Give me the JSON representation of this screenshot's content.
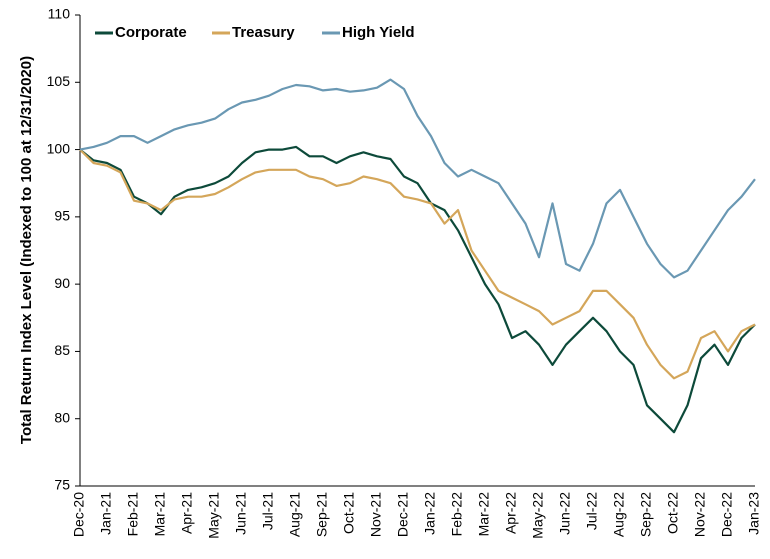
{
  "chart_data": {
    "type": "line",
    "y_label": "Total Return Index Level (Indexed to 100 at 12/31/2020)",
    "categories": [
      "Dec-20",
      null,
      "Jan-21",
      null,
      "Feb-21",
      null,
      "Mar-21",
      null,
      "Apr-21",
      null,
      "May-21",
      null,
      "Jun-21",
      null,
      "Jul-21",
      null,
      "Aug-21",
      null,
      "Sep-21",
      null,
      "Oct-21",
      null,
      "Nov-21",
      null,
      "Dec-21",
      null,
      "Jan-22",
      null,
      "Feb-22",
      null,
      "Mar-22",
      null,
      "Apr-22",
      null,
      "May-22",
      null,
      "Jun-22",
      null,
      "Jul-22",
      null,
      "Aug-22",
      null,
      "Sep-22",
      null,
      "Oct-22",
      null,
      "Nov-22",
      null,
      "Dec-22",
      null,
      "Jan-23"
    ],
    "series": [
      {
        "name": "Corporate",
        "color": "#0d4a3a",
        "values": [
          100,
          99.2,
          99,
          98.5,
          96.5,
          96,
          95.2,
          96.5,
          97,
          97.2,
          97.5,
          98,
          99,
          99.8,
          100,
          100,
          100.2,
          99.5,
          99.5,
          99,
          99.5,
          99.8,
          99.5,
          99.3,
          98,
          97.5,
          96,
          95.5,
          94,
          92,
          90,
          88.5,
          86,
          86.5,
          85.5,
          84,
          85.5,
          86.5,
          87.5,
          86.5,
          85,
          84,
          81,
          80,
          79,
          81,
          84.5,
          85.5,
          84,
          86,
          87
        ]
      },
      {
        "name": "Treasury",
        "color": "#d4a65a",
        "values": [
          100,
          99,
          98.8,
          98.3,
          96.2,
          96,
          95.5,
          96.3,
          96.5,
          96.5,
          96.7,
          97.2,
          97.8,
          98.3,
          98.5,
          98.5,
          98.5,
          98,
          97.8,
          97.3,
          97.5,
          98,
          97.8,
          97.5,
          96.5,
          96.3,
          96,
          94.5,
          95.5,
          92.5,
          91,
          89.5,
          89,
          88.5,
          88,
          87,
          87.5,
          88,
          89.5,
          89.5,
          88.5,
          87.5,
          85.5,
          84,
          83,
          83.5,
          86,
          86.5,
          85,
          86.5,
          87
        ]
      },
      {
        "name": "High Yield",
        "color": "#6a98b3",
        "values": [
          100,
          100.2,
          100.5,
          101,
          101,
          100.5,
          101,
          101.5,
          101.8,
          102,
          102.3,
          103,
          103.5,
          103.7,
          104,
          104.5,
          104.8,
          104.7,
          104.4,
          104.5,
          104.3,
          104.4,
          104.6,
          105.2,
          104.5,
          102.5,
          101,
          99,
          98,
          98.5,
          98,
          97.5,
          96,
          94.5,
          92,
          96,
          91.5,
          91,
          93,
          96,
          97,
          95,
          93,
          91.5,
          90.5,
          91,
          92.5,
          94,
          95.5,
          96.5,
          97.8
        ]
      }
    ],
    "ylim": [
      75,
      110
    ],
    "yticks": [
      75,
      80,
      85,
      90,
      95,
      100,
      105,
      110
    ],
    "grid": false
  }
}
